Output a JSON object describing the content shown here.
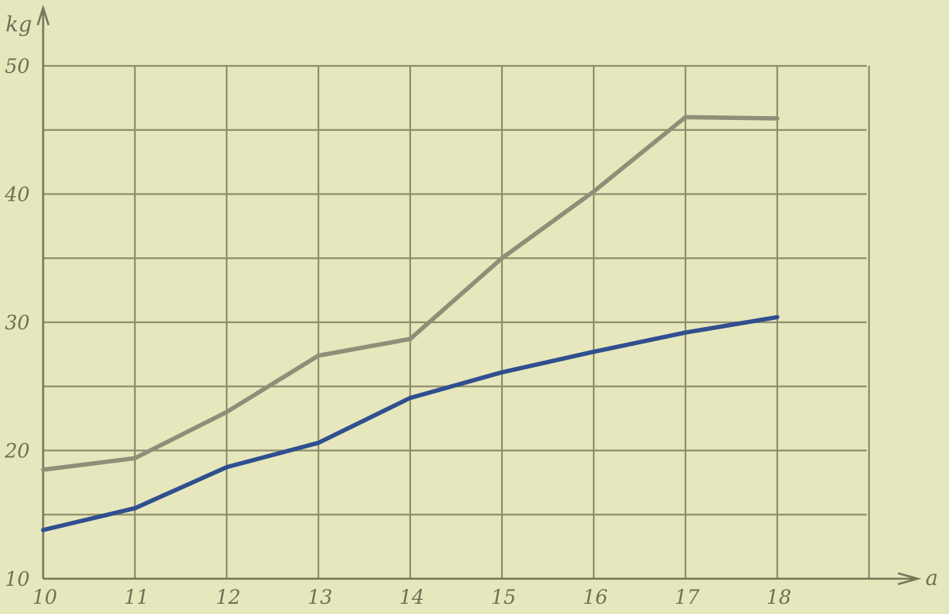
{
  "chart_data": {
    "type": "line",
    "title": "",
    "ylabel": "kg",
    "xlabel": "a",
    "x": [
      10,
      11,
      12,
      13,
      14,
      15,
      16,
      17,
      18
    ],
    "xticks": [
      "10",
      "11",
      "12",
      "13",
      "14",
      "15",
      "16",
      "17",
      "18"
    ],
    "yticks": [
      "10",
      "20",
      "30",
      "40",
      "50"
    ],
    "xlim": [
      10,
      19
    ],
    "ylim": [
      10,
      50
    ],
    "grid": true,
    "series": [
      {
        "color": "#8f8f78",
        "values": [
          18.5,
          19.4,
          23.0,
          27.4,
          28.7,
          35.0,
          40.2,
          46.0,
          45.9
        ]
      },
      {
        "color": "#2f4f8f",
        "values": [
          13.8,
          15.5,
          18.7,
          20.6,
          24.1,
          26.1,
          27.7,
          29.2,
          30.4
        ]
      }
    ]
  }
}
